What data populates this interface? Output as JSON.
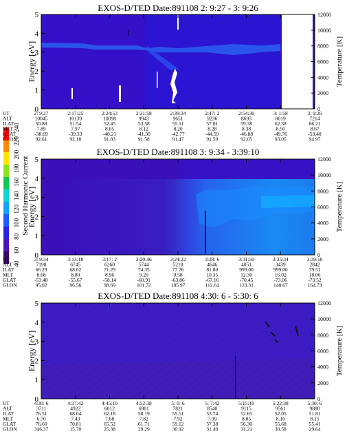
{
  "colorbar": {
    "label": "Second Harmonic Current",
    "ticks": [
      "40",
      "60",
      "80",
      "100",
      "120",
      "140",
      "160",
      "180",
      "200",
      "220",
      "240"
    ]
  },
  "panels": [
    {
      "title": "EXOS-D/TED   Date:891108  2: 9:27 - 3: 9:26",
      "ylabel": "Energy [eV]",
      "y2label": "Temperature [K]",
      "yticks": [
        "0",
        "1",
        "2",
        "3",
        "4",
        "5"
      ],
      "y2ticks": [
        "0",
        "2000",
        "4000",
        "6000",
        "8000",
        "10000",
        "12000"
      ],
      "style": "p1",
      "rowlabels": [
        "UT",
        "ALT",
        "ILAT",
        "MLT",
        "GLAT",
        "GLON"
      ],
      "columns": [
        [
          "2: 9:27",
          "10045",
          "50.88",
          "7.89",
          "-38.69",
          "92.61"
        ],
        [
          "2:17:25",
          "10139",
          "51.54",
          "7.97",
          "-39.33",
          "92.18"
        ],
        [
          "2:24:53",
          "10098",
          "52.45",
          "8.05",
          "-40.21",
          "91.83"
        ],
        [
          "2:31:58",
          "9943",
          "53.58",
          "8.12",
          "-41.30",
          "91.58"
        ],
        [
          "2:39:34",
          "9651",
          "55.11",
          "8.20",
          "-42.77",
          "91.47"
        ],
        [
          "2:47: 2",
          "9236",
          "57.01",
          "8.28",
          "-44.59",
          "91.59"
        ],
        [
          "2:54:30",
          "8693",
          "59.38",
          "8.38",
          "-46.88",
          "92.05"
        ],
        [
          "3: 1:58",
          "8019",
          "62.38",
          "8.50",
          "-49.76",
          "93.05"
        ],
        [
          "3: 9:26",
          "7214",
          "66.21",
          "8.67",
          "-53.40",
          "94.97"
        ]
      ]
    },
    {
      "title": "EXOS-D/TED   Date:891108  3: 9:34 - 3:39:10",
      "ylabel": "Energy [eV]",
      "y2label": "Temperature [K]",
      "yticks": [
        "0",
        "1",
        "2",
        "3",
        "4",
        "5"
      ],
      "y2ticks": [
        "0",
        "2000",
        "4000",
        "6000",
        "8000",
        "10000",
        "12000"
      ],
      "style": "p2",
      "rowlabels": [
        "UT",
        "ALT",
        "ILAT",
        "MLT",
        "GLAT",
        "GLON"
      ],
      "columns": [
        [
          "3: 9:34",
          "7198",
          "66.29",
          "8.68",
          "-53.48",
          "95.02"
        ],
        [
          "3:13:18",
          "6745",
          "68.62",
          "8.80",
          "-55.67",
          "96.56"
        ],
        [
          "3:17: 2",
          "6260",
          "71.29",
          "8.96",
          "-58.14",
          "98.69"
        ],
        [
          "3:20:46",
          "5744",
          "74.35",
          "9.20",
          "-60.91",
          "101.72"
        ],
        [
          "3:24:22",
          "5218",
          "77.76",
          "9.58",
          "-63.86",
          "105.97"
        ],
        [
          "3:28: 6",
          "4646",
          "81.80",
          "10.35",
          "-67.16",
          "112.64"
        ],
        [
          "3:31:50",
          "4051",
          "999.00",
          "12.30",
          "-70.45",
          "123.31"
        ],
        [
          "3:35:34",
          "3439",
          "999.00",
          "16.02",
          "-73.06",
          "140.67"
        ],
        [
          "3:39:10",
          "2842",
          "79.51",
          "18.06",
          "-73.52",
          "164.73"
        ]
      ]
    },
    {
      "title": "EXOS-D/TED   Date:891108  4:30: 6 - 5:30: 6",
      "ylabel": "Energy [eV]",
      "y2label": "Temperature [K]",
      "yticks": [
        "0",
        "1",
        "2",
        "3",
        "4",
        "5"
      ],
      "y2ticks": [
        "0",
        "2000",
        "4000",
        "6000",
        "8000",
        "10000",
        "12000"
      ],
      "style": "p3",
      "rowlabels": [
        "UT",
        "ALT",
        "ILAT",
        "MLT",
        "GLAT",
        "GLON"
      ],
      "columns": [
        [
          "4:30: 6",
          "3711",
          "76.51",
          "6.70",
          "76.60",
          "346.37"
        ],
        [
          "4:37:42",
          "4922",
          "68.04",
          "7.43",
          "70.81",
          "15.70"
        ],
        [
          "4:45:10",
          "6012",
          "62.18",
          "7.68",
          "65.52",
          "25.38"
        ],
        [
          "4:52:38",
          "6981",
          "58.19",
          "7.82",
          "61.71",
          "29.29"
        ],
        [
          "5: 0: 6",
          "7821",
          "55.51",
          "7.92",
          "59.12",
          "30.92"
        ],
        [
          "5: 7:42",
          "8540",
          "53.74",
          "7.99",
          "57.38",
          "31.40"
        ],
        [
          "5:15:10",
          "9115",
          "52.65",
          "8.05",
          "56.30",
          "31.21"
        ],
        [
          "5:22:38",
          "9561",
          "52.05",
          "8.10",
          "55.68",
          "30.58"
        ],
        [
          "5:30: 6",
          "9880",
          "51.81",
          "8.15",
          "55.41",
          "29.64"
        ]
      ]
    }
  ],
  "chart_data": [
    {
      "type": "heatmap",
      "title": "EXOS-D/TED   Date:891108  2: 9:27 - 3: 9:26",
      "ylabel": "Energy [eV]",
      "y2label": "Temperature [K]",
      "ylim": [
        0,
        5
      ],
      "y2lim": [
        0,
        12000
      ],
      "x": [
        "2: 9:27",
        "2:17:25",
        "2:24:53",
        "2:31:58",
        "2:39:34",
        "2:47: 2",
        "2:54:30",
        "3: 1:58",
        "3: 9:26"
      ]
    },
    {
      "type": "heatmap",
      "title": "EXOS-D/TED   Date:891108  3: 9:34 - 3:39:10",
      "ylabel": "Energy [eV]",
      "y2label": "Temperature [K]",
      "ylim": [
        0,
        5
      ],
      "y2lim": [
        0,
        12000
      ],
      "x": [
        "3: 9:34",
        "3:13:18",
        "3:17: 2",
        "3:20:46",
        "3:24:22",
        "3:28: 6",
        "3:31:50",
        "3:35:34",
        "3:39:10"
      ]
    },
    {
      "type": "heatmap",
      "title": "EXOS-D/TED   Date:891108  4:30: 6 - 5:30: 6",
      "ylabel": "Energy [eV]",
      "y2label": "Temperature [K]",
      "ylim": [
        0,
        5
      ],
      "y2lim": [
        0,
        12000
      ],
      "x": [
        "4:30: 6",
        "4:37:42",
        "4:45:10",
        "4:52:38",
        "5: 0: 6",
        "5: 7:42",
        "5:15:10",
        "5:22:38",
        "5:30: 6"
      ]
    }
  ]
}
